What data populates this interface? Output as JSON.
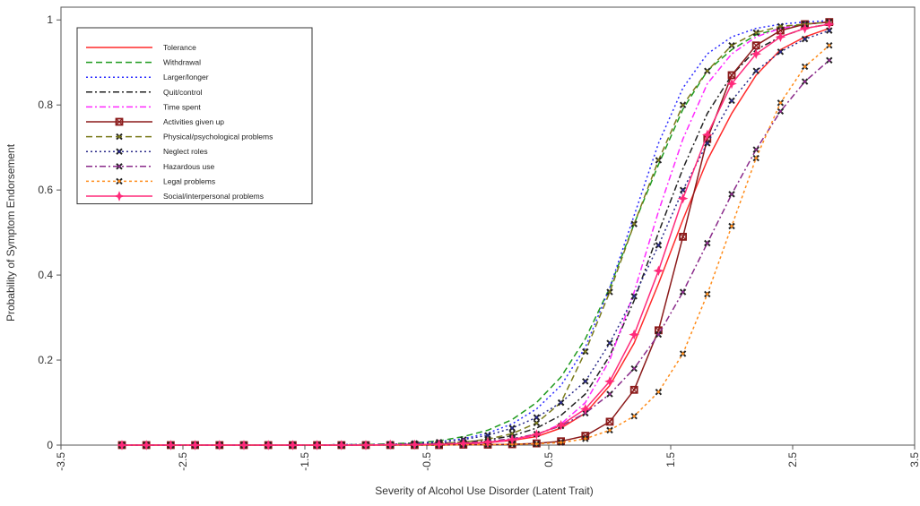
{
  "chart_data": {
    "type": "line",
    "title": "",
    "xlabel": "Severity of Alcohol Use Disorder (Latent Trait)",
    "ylabel": "Probability of Symptom Endorsement",
    "xlim": [
      -3.5,
      3.5
    ],
    "ylim": [
      0,
      1.03
    ],
    "xticks": [
      -3.5,
      -2.5,
      -1.5,
      -0.5,
      0.5,
      1.5,
      2.5,
      3.5
    ],
    "xtick_labels": [
      "-3.5",
      "-2.5",
      "-1.5",
      "-0.5",
      "0.5",
      "1.5",
      "2.5",
      "3.5"
    ],
    "yticks": [
      0,
      0.2,
      0.4,
      0.6,
      0.8,
      1
    ],
    "ytick_labels": [
      "0",
      "0.2",
      "0.4",
      "0.6",
      "0.8",
      "1"
    ],
    "grid": false,
    "legend_position": "top-left",
    "x": [
      -3.0,
      -2.8,
      -2.6,
      -2.4,
      -2.2,
      -2.0,
      -1.8,
      -1.6,
      -1.4,
      -1.2,
      -1.0,
      -0.8,
      -0.6,
      -0.4,
      -0.2,
      0.0,
      0.2,
      0.4,
      0.6,
      0.8,
      1.0,
      1.2,
      1.4,
      1.6,
      1.8,
      2.0,
      2.2,
      2.4,
      2.6,
      2.8
    ],
    "series": [
      {
        "name": "Tolerance",
        "color": "#ff2a2a",
        "dash": "",
        "marker": "none",
        "values": [
          0,
          0,
          0,
          0,
          0,
          0,
          0,
          0,
          0,
          0,
          0,
          0.001,
          0.001,
          0.002,
          0.003,
          0.006,
          0.011,
          0.02,
          0.04,
          0.075,
          0.14,
          0.24,
          0.38,
          0.53,
          0.67,
          0.78,
          0.87,
          0.93,
          0.96,
          0.98
        ]
      },
      {
        "name": "Withdrawal",
        "color": "#1e9a1e",
        "dash": "7,4",
        "marker": "none",
        "values": [
          0,
          0,
          0,
          0,
          0,
          0,
          0,
          0,
          0,
          0.001,
          0.001,
          0.003,
          0.005,
          0.01,
          0.02,
          0.035,
          0.06,
          0.1,
          0.16,
          0.25,
          0.37,
          0.52,
          0.66,
          0.79,
          0.88,
          0.93,
          0.965,
          0.98,
          0.99,
          0.995
        ]
      },
      {
        "name": "Larger/longer",
        "color": "#2a2aff",
        "dash": "2,3",
        "marker": "none",
        "values": [
          0,
          0,
          0,
          0,
          0,
          0,
          0,
          0,
          0,
          0.001,
          0.001,
          0.002,
          0.004,
          0.008,
          0.015,
          0.028,
          0.05,
          0.085,
          0.14,
          0.23,
          0.37,
          0.54,
          0.71,
          0.84,
          0.92,
          0.96,
          0.98,
          0.99,
          0.995,
          0.998
        ]
      },
      {
        "name": "Quit/control",
        "color": "#222222",
        "dash": "7,3,2,3",
        "marker": "none",
        "values": [
          0,
          0,
          0,
          0,
          0,
          0,
          0,
          0,
          0,
          0,
          0.001,
          0.001,
          0.002,
          0.004,
          0.007,
          0.012,
          0.022,
          0.04,
          0.07,
          0.12,
          0.21,
          0.34,
          0.5,
          0.65,
          0.78,
          0.87,
          0.93,
          0.96,
          0.98,
          0.99
        ]
      },
      {
        "name": "Time spent",
        "color": "#ff2aff",
        "dash": "7,3,2,3",
        "marker": "none",
        "values": [
          0,
          0,
          0,
          0,
          0,
          0,
          0,
          0,
          0,
          0,
          0,
          0,
          0.001,
          0.002,
          0.003,
          0.006,
          0.012,
          0.024,
          0.05,
          0.1,
          0.2,
          0.36,
          0.55,
          0.72,
          0.85,
          0.92,
          0.96,
          0.98,
          0.99,
          0.995
        ]
      },
      {
        "name": "Activities given up",
        "color": "#8b1a1a",
        "dash": "",
        "marker": "square",
        "values": [
          0,
          0,
          0,
          0,
          0,
          0,
          0,
          0,
          0,
          0,
          0,
          0,
          0,
          0,
          0.001,
          0.001,
          0.002,
          0.004,
          0.009,
          0.022,
          0.055,
          0.13,
          0.27,
          0.49,
          0.72,
          0.87,
          0.94,
          0.975,
          0.99,
          0.995
        ]
      },
      {
        "name": "Physical/psychological problems",
        "color": "#7a7a1a",
        "dash": "7,4",
        "marker": "x",
        "values": [
          0,
          0,
          0,
          0,
          0,
          0,
          0,
          0,
          0,
          0,
          0.001,
          0.001,
          0.002,
          0.004,
          0.007,
          0.014,
          0.027,
          0.052,
          0.1,
          0.22,
          0.36,
          0.52,
          0.67,
          0.8,
          0.88,
          0.94,
          0.97,
          0.985,
          0.99,
          0.995
        ]
      },
      {
        "name": "Neglect roles",
        "color": "#2a2a8a",
        "dash": "2,3",
        "marker": "x",
        "values": [
          0,
          0,
          0,
          0,
          0,
          0,
          0,
          0,
          0,
          0.001,
          0.001,
          0.002,
          0.004,
          0.007,
          0.013,
          0.023,
          0.04,
          0.065,
          0.1,
          0.15,
          0.24,
          0.35,
          0.47,
          0.6,
          0.71,
          0.81,
          0.88,
          0.925,
          0.955,
          0.975
        ]
      },
      {
        "name": "Hazardous use",
        "color": "#8a2a8a",
        "dash": "7,3,2,3",
        "marker": "x",
        "values": [
          0,
          0,
          0,
          0,
          0,
          0,
          0,
          0,
          0,
          0,
          0,
          0.001,
          0.002,
          0.003,
          0.005,
          0.009,
          0.015,
          0.026,
          0.045,
          0.075,
          0.12,
          0.18,
          0.26,
          0.36,
          0.475,
          0.59,
          0.695,
          0.785,
          0.855,
          0.905
        ]
      },
      {
        "name": "Legal problems",
        "color": "#ff8c1a",
        "dash": "3,3",
        "marker": "x",
        "values": [
          0,
          0,
          0,
          0,
          0,
          0,
          0,
          0,
          0,
          0,
          0,
          0,
          0,
          0,
          0.001,
          0.001,
          0.002,
          0.003,
          0.006,
          0.015,
          0.035,
          0.068,
          0.125,
          0.215,
          0.355,
          0.515,
          0.675,
          0.805,
          0.89,
          0.94
        ]
      },
      {
        "name": "Social/interpersonal problems",
        "color": "#ff2a7a",
        "dash": "",
        "marker": "star",
        "values": [
          0,
          0,
          0,
          0,
          0,
          0,
          0,
          0,
          0,
          0,
          0,
          0.001,
          0.001,
          0.002,
          0.004,
          0.007,
          0.013,
          0.025,
          0.047,
          0.085,
          0.15,
          0.26,
          0.41,
          0.58,
          0.73,
          0.85,
          0.92,
          0.96,
          0.98,
          0.99
        ]
      }
    ]
  }
}
